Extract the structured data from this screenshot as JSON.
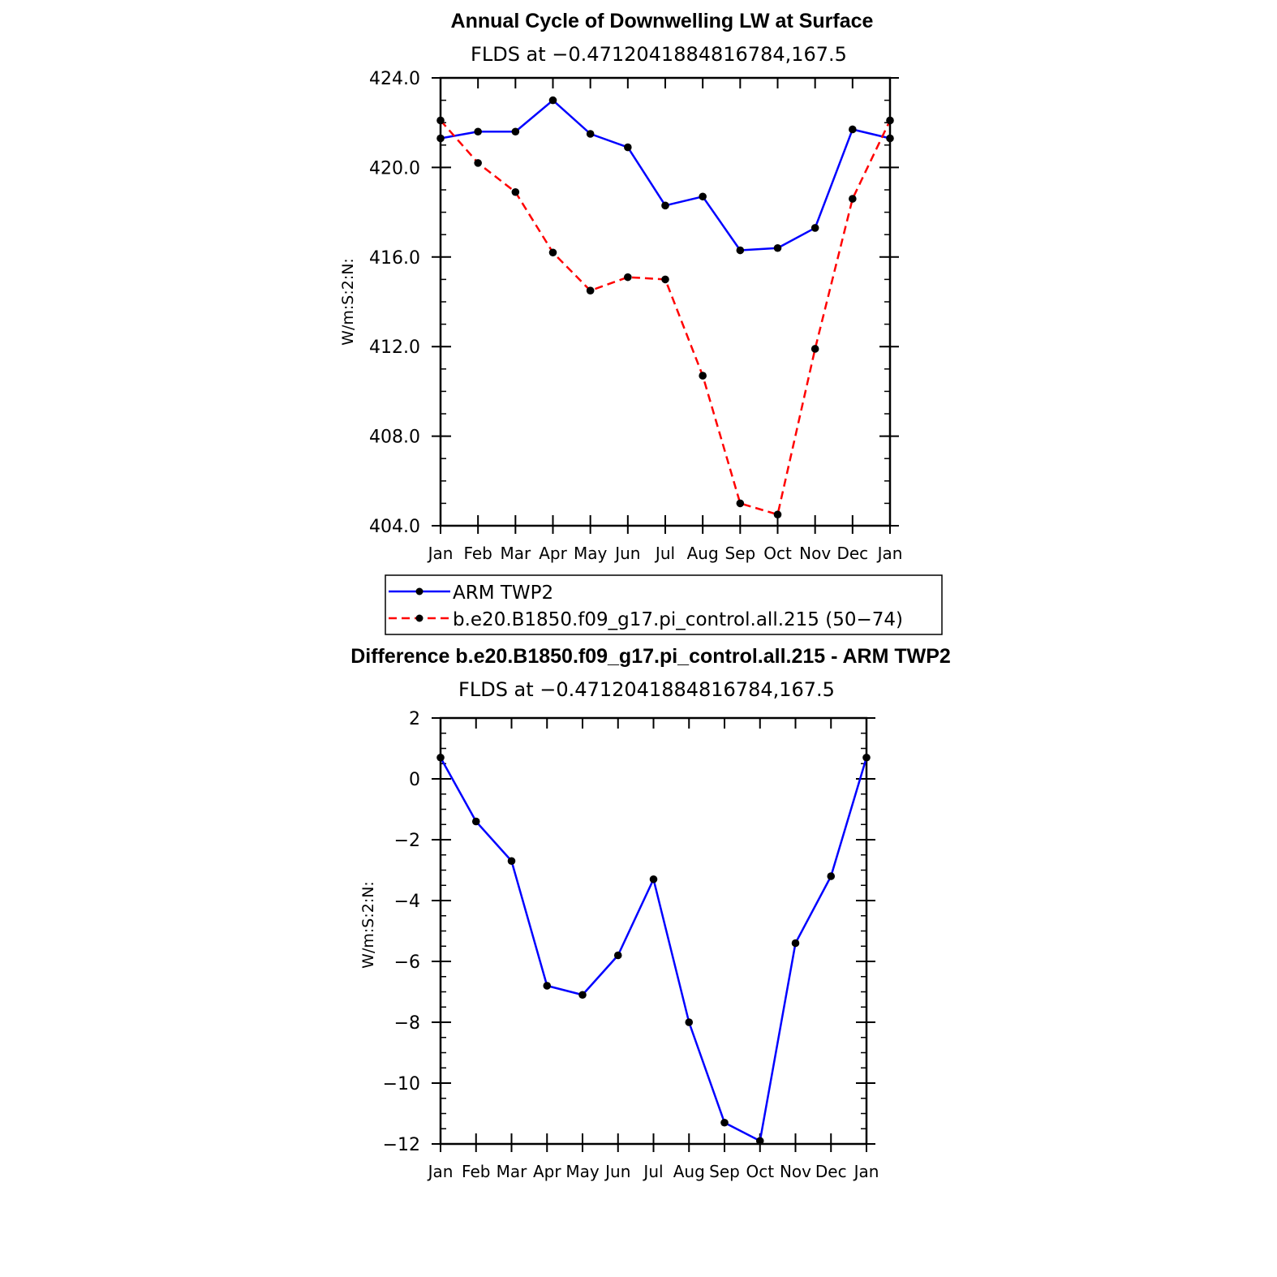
{
  "chart_data": [
    {
      "type": "line",
      "title": "Annual Cycle of Downwelling LW at Surface",
      "subtitle": "FLDS at −0.4712041884816784,167.5",
      "ylabel": "W/m:S:2:N:",
      "ylim": [
        404,
        424
      ],
      "yticks": [
        "424.0",
        "420.0",
        "416.0",
        "412.0",
        "408.0",
        "404.0"
      ],
      "ytick_values": [
        424,
        420,
        416,
        412,
        408,
        404
      ],
      "categories": [
        "Jan",
        "Feb",
        "Mar",
        "Apr",
        "May",
        "Jun",
        "Jul",
        "Aug",
        "Sep",
        "Oct",
        "Nov",
        "Dec",
        "Jan"
      ],
      "series": [
        {
          "name": "ARM  TWP2",
          "color": "#0000ff",
          "dash": "solid",
          "values": [
            421.3,
            421.6,
            421.6,
            423.0,
            421.5,
            420.9,
            418.3,
            418.7,
            416.3,
            416.4,
            417.3,
            421.7,
            421.3
          ]
        },
        {
          "name": "b.e20.B1850.f09_g17.pi_control.all.215 (50−74)",
          "color": "#ff0000",
          "dash": "dashed",
          "values": [
            422.1,
            420.2,
            418.9,
            416.2,
            414.5,
            415.1,
            415.0,
            410.7,
            405.0,
            404.5,
            411.9,
            418.6,
            422.1
          ]
        }
      ],
      "legend": "below"
    },
    {
      "type": "line",
      "title": "Difference b.e20.B1850.f09_g17.pi_control.all.215 - ARM TWP2",
      "subtitle": "FLDS at −0.4712041884816784,167.5",
      "ylabel": "W/m:S:2:N:",
      "ylim": [
        -12,
        2
      ],
      "yticks": [
        "2",
        "0",
        "−2",
        "−4",
        "−6",
        "−8",
        "−10",
        "−12"
      ],
      "ytick_values": [
        2,
        0,
        -2,
        -4,
        -6,
        -8,
        -10,
        -12
      ],
      "categories": [
        "Jan",
        "Feb",
        "Mar",
        "Apr",
        "May",
        "Jun",
        "Jul",
        "Aug",
        "Sep",
        "Oct",
        "Nov",
        "Dec",
        "Jan"
      ],
      "series": [
        {
          "name": "Difference",
          "color": "#0000ff",
          "dash": "solid",
          "values": [
            0.7,
            -1.4,
            -2.7,
            -6.8,
            -7.1,
            -5.8,
            -3.3,
            -8.0,
            -11.3,
            -11.9,
            -5.4,
            -3.2,
            0.7
          ]
        }
      ]
    }
  ]
}
